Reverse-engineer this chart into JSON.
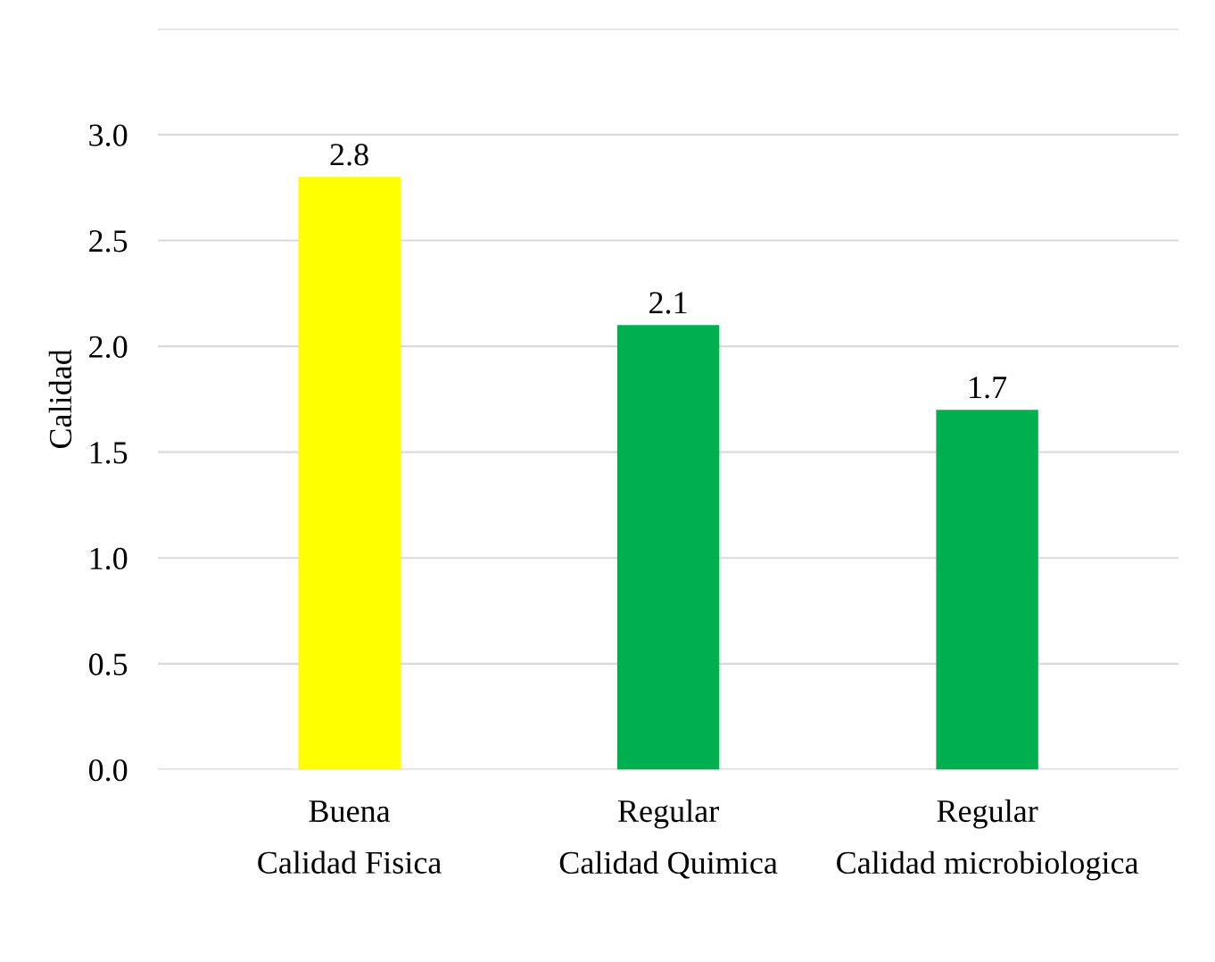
{
  "chart_data": {
    "type": "bar",
    "ylabel": "Calidad",
    "categories": [
      "Buena\nCalidad Fisica",
      "Regular\nCalidad Quimica",
      "Regular\nCalidad microbiologica"
    ],
    "values": [
      2.8,
      2.1,
      1.7
    ],
    "colors": [
      "#ffff00",
      "#00b050",
      "#00b050"
    ],
    "ylim": [
      0,
      3.5
    ],
    "yticks": [
      {
        "value": 0,
        "label": "0.0"
      },
      {
        "value": 0.5,
        "label": "0.5"
      },
      {
        "value": 1,
        "label": "1.0"
      },
      {
        "value": 1.5,
        "label": "1.5"
      },
      {
        "value": 2,
        "label": "2.0"
      },
      {
        "value": 2.5,
        "label": "2.5"
      },
      {
        "value": 3,
        "label": "3.0"
      },
      {
        "value": 3.5,
        "label": null
      }
    ],
    "grid": "y",
    "data_labels": true
  }
}
